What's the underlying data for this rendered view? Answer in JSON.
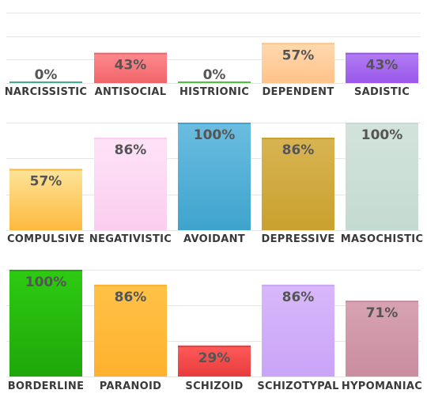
{
  "chart_data": [
    {
      "type": "bar",
      "categories": [
        "NARCISSISTIC",
        "ANTISOCIAL",
        "HISTRIONIC",
        "DEPENDENT",
        "SADISTIC"
      ],
      "values": [
        0,
        43,
        0,
        57,
        43
      ],
      "labels": [
        "0%",
        "43%",
        "0%",
        "57%",
        "43%"
      ],
      "colors": [
        [
          "#6fc6b8",
          "#4aa798"
        ],
        [
          "#ff8a8e",
          "#f0656a"
        ],
        [
          "#7cdc6a",
          "#4cc23a"
        ],
        [
          "#ffd9b0",
          "#ffc28a"
        ],
        [
          "#b27cf3",
          "#9a58ea"
        ]
      ],
      "ylim": [
        0,
        100
      ],
      "grid": true
    },
    {
      "type": "bar",
      "categories": [
        "COMPULSIVE",
        "NEGATIVISTIC",
        "AVOIDANT",
        "DEPRESSIVE",
        "MASOCHISTIC"
      ],
      "values": [
        57,
        86,
        100,
        86,
        100
      ],
      "labels": [
        "57%",
        "86%",
        "100%",
        "86%",
        "100%"
      ],
      "colors": [
        [
          "#fde49a",
          "#fdb93e"
        ],
        [
          "#fde3f7",
          "#fbcdef"
        ],
        [
          "#6bbde0",
          "#3ea4cd"
        ],
        [
          "#d8b452",
          "#c9a12e"
        ],
        [
          "#d2e3dc",
          "#c4dbd1"
        ]
      ],
      "ylim": [
        0,
        100
      ],
      "grid": true
    },
    {
      "type": "bar",
      "categories": [
        "BORDERLINE",
        "PARANOID",
        "SCHIZOID",
        "SCHIZOTYPAL",
        "HYPOMANIAC"
      ],
      "values": [
        100,
        86,
        29,
        86,
        71
      ],
      "labels": [
        "100%",
        "86%",
        "29%",
        "86%",
        "71%"
      ],
      "colors": [
        [
          "#2ecb12",
          "#1fa70a"
        ],
        [
          "#ffc247",
          "#ffb12e"
        ],
        [
          "#ff5a5a",
          "#e83c3c"
        ],
        [
          "#d8b8fb",
          "#caa4f7"
        ],
        [
          "#d7a3b3",
          "#c98d9f"
        ]
      ],
      "ylim": [
        0,
        100
      ],
      "grid": true
    }
  ]
}
